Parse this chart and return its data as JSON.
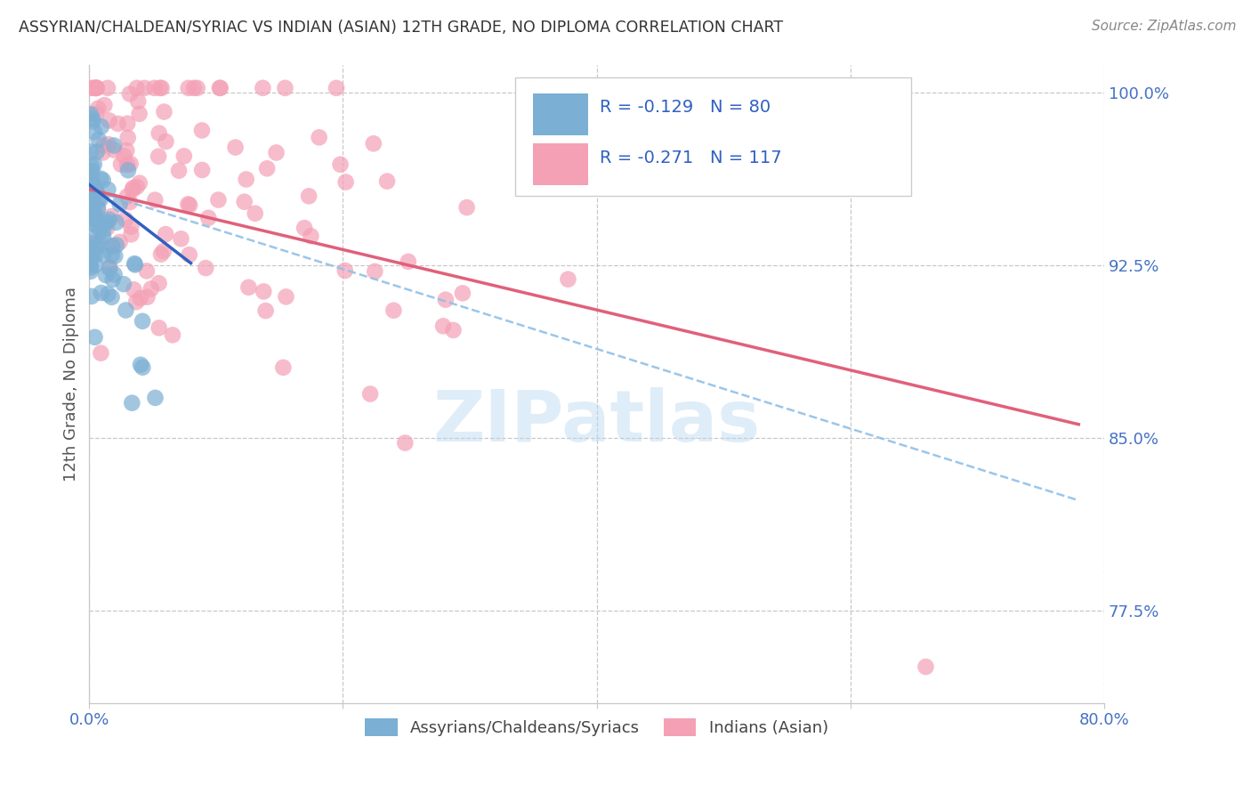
{
  "title": "ASSYRIAN/CHALDEAN/SYRIAC VS INDIAN (ASIAN) 12TH GRADE, NO DIPLOMA CORRELATION CHART",
  "source": "Source: ZipAtlas.com",
  "ylabel": "12th Grade, No Diploma",
  "xlim": [
    0.0,
    0.8
  ],
  "ylim": [
    0.735,
    1.012
  ],
  "xticks": [
    0.0,
    0.2,
    0.4,
    0.6,
    0.8
  ],
  "xticklabels": [
    "0.0%",
    "",
    "",
    "",
    "80.0%"
  ],
  "yticks": [
    0.775,
    0.85,
    0.925,
    1.0
  ],
  "yticklabels": [
    "77.5%",
    "85.0%",
    "92.5%",
    "100.0%"
  ],
  "assyrian_R": -0.129,
  "assyrian_N": 80,
  "indian_R": -0.271,
  "indian_N": 117,
  "assyrian_color": "#7bafd4",
  "indian_color": "#f4a0b5",
  "assyrian_line_color": "#3060c0",
  "indian_line_color": "#e0607a",
  "dashed_line_color": "#90c0e8",
  "background_color": "#ffffff",
  "watermark": "ZIPatlas",
  "legend_label_1": "Assyrians/Chaldeans/Syriacs",
  "legend_label_2": "Indians (Asian)",
  "ass_line_x0": 0.0,
  "ass_line_y0": 0.96,
  "ass_line_x1": 0.08,
  "ass_line_y1": 0.926,
  "ind_line_x0": 0.0,
  "ind_line_y0": 0.958,
  "ind_line_x1": 0.78,
  "ind_line_y1": 0.856,
  "dash_line_x0": 0.0,
  "dash_line_y0": 0.958,
  "dash_line_x1": 0.78,
  "dash_line_y1": 0.823
}
